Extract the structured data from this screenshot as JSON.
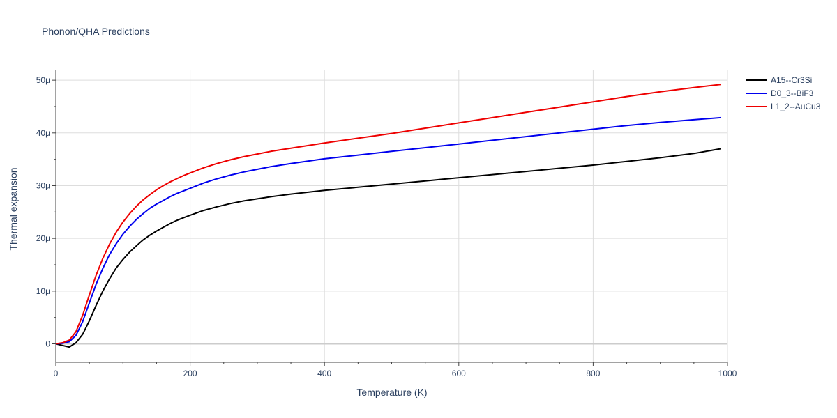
{
  "chart_data": {
    "type": "line",
    "title": "Phonon/QHA Predictions",
    "xlabel": "Temperature (K)",
    "ylabel": "Thermal expansion",
    "xlim": [
      0,
      1000
    ],
    "ylim": [
      -3.5e-06,
      5.2e-05
    ],
    "x_ticks": [
      0,
      200,
      400,
      600,
      800,
      1000
    ],
    "x_tick_labels": [
      "0",
      "200",
      "400",
      "600",
      "800",
      "1000"
    ],
    "y_ticks": [
      0,
      1e-05,
      2e-05,
      3e-05,
      4e-05,
      5e-05
    ],
    "y_tick_labels": [
      "0",
      "10μ",
      "20μ",
      "30μ",
      "40μ",
      "50μ"
    ],
    "grid": true,
    "legend_position": "top-right",
    "series": [
      {
        "name": "A15--Cr3Si",
        "color": "#000000",
        "x": [
          0,
          10,
          20,
          30,
          40,
          50,
          60,
          70,
          80,
          90,
          100,
          110,
          120,
          130,
          140,
          150,
          160,
          170,
          180,
          190,
          200,
          220,
          240,
          260,
          280,
          300,
          320,
          350,
          400,
          450,
          500,
          550,
          600,
          650,
          700,
          750,
          800,
          850,
          900,
          950,
          990
        ],
        "y": [
          0,
          -3e-07,
          -6e-07,
          2e-07,
          1.8e-06,
          4.4e-06,
          7.3e-06,
          1e-05,
          1.23e-05,
          1.44e-05,
          1.6e-05,
          1.74e-05,
          1.86e-05,
          1.97e-05,
          2.06e-05,
          2.14e-05,
          2.21e-05,
          2.28e-05,
          2.34e-05,
          2.39e-05,
          2.44e-05,
          2.53e-05,
          2.6e-05,
          2.66e-05,
          2.71e-05,
          2.75e-05,
          2.79e-05,
          2.84e-05,
          2.91e-05,
          2.97e-05,
          3.03e-05,
          3.09e-05,
          3.15e-05,
          3.21e-05,
          3.27e-05,
          3.33e-05,
          3.39e-05,
          3.46e-05,
          3.53e-05,
          3.61e-05,
          3.7e-05
        ]
      },
      {
        "name": "D0_3--BiF3",
        "color": "#0000ee",
        "x": [
          0,
          10,
          20,
          30,
          40,
          50,
          60,
          70,
          80,
          90,
          100,
          110,
          120,
          130,
          140,
          150,
          160,
          170,
          180,
          190,
          200,
          220,
          240,
          260,
          280,
          300,
          320,
          350,
          400,
          450,
          500,
          550,
          600,
          650,
          700,
          750,
          800,
          850,
          900,
          950,
          990
        ],
        "y": [
          0,
          1e-07,
          4e-07,
          1.6e-06,
          4.2e-06,
          7.8e-06,
          1.13e-05,
          1.43e-05,
          1.69e-05,
          1.9e-05,
          2.08e-05,
          2.23e-05,
          2.36e-05,
          2.47e-05,
          2.57e-05,
          2.65e-05,
          2.72e-05,
          2.79e-05,
          2.85e-05,
          2.9e-05,
          2.95e-05,
          3.05e-05,
          3.13e-05,
          3.2e-05,
          3.26e-05,
          3.31e-05,
          3.36e-05,
          3.42e-05,
          3.51e-05,
          3.58e-05,
          3.65e-05,
          3.72e-05,
          3.79e-05,
          3.86e-05,
          3.93e-05,
          4e-05,
          4.07e-05,
          4.14e-05,
          4.2e-05,
          4.25e-05,
          4.29e-05
        ]
      },
      {
        "name": "L1_2--AuCu3",
        "color": "#ee0000",
        "x": [
          0,
          10,
          20,
          30,
          40,
          50,
          60,
          70,
          80,
          90,
          100,
          110,
          120,
          130,
          140,
          150,
          160,
          170,
          180,
          190,
          200,
          220,
          240,
          260,
          280,
          300,
          320,
          350,
          400,
          450,
          500,
          550,
          600,
          650,
          700,
          750,
          800,
          850,
          900,
          950,
          990
        ],
        "y": [
          0,
          2e-07,
          7e-07,
          2.3e-06,
          5.4e-06,
          9.3e-06,
          1.3e-05,
          1.62e-05,
          1.89e-05,
          2.12e-05,
          2.31e-05,
          2.47e-05,
          2.61e-05,
          2.73e-05,
          2.83e-05,
          2.92e-05,
          3e-05,
          3.07e-05,
          3.13e-05,
          3.19e-05,
          3.24e-05,
          3.34e-05,
          3.42e-05,
          3.49e-05,
          3.55e-05,
          3.6e-05,
          3.65e-05,
          3.71e-05,
          3.81e-05,
          3.9e-05,
          3.99e-05,
          4.09e-05,
          4.19e-05,
          4.29e-05,
          4.39e-05,
          4.49e-05,
          4.59e-05,
          4.69e-05,
          4.78e-05,
          4.86e-05,
          4.92e-05
        ]
      }
    ]
  }
}
